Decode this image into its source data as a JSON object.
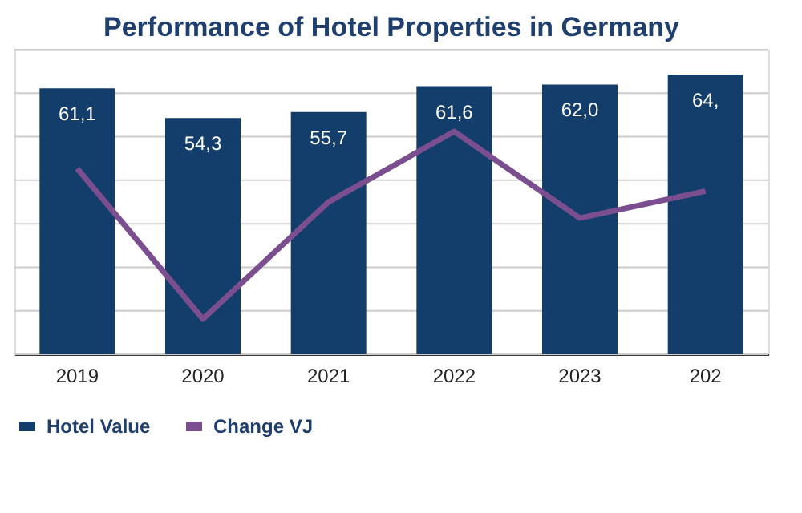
{
  "chart_data": {
    "type": "bar",
    "title": "Performance of Hotel Properties in Germany",
    "categories": [
      "2019",
      "2020",
      "2021",
      "2022",
      "2023",
      "202"
    ],
    "ylim": [
      0,
      70
    ],
    "grid": true,
    "legend": "bottom",
    "series": [
      {
        "name": "Hotel Value",
        "color": "#133e6b",
        "values": [
          61.1,
          54.3,
          55.7,
          61.6,
          62.0,
          64.3
        ],
        "value_labels": [
          "61,1",
          "54,3",
          "55,7",
          "61,6",
          "62,0",
          "64,"
        ]
      },
      {
        "name": "Change VJ",
        "type": "line",
        "color": "#7b4f8f",
        "values": [
          42.7,
          8.1,
          35.0,
          51.2,
          31.3,
          37.5
        ]
      }
    ]
  }
}
